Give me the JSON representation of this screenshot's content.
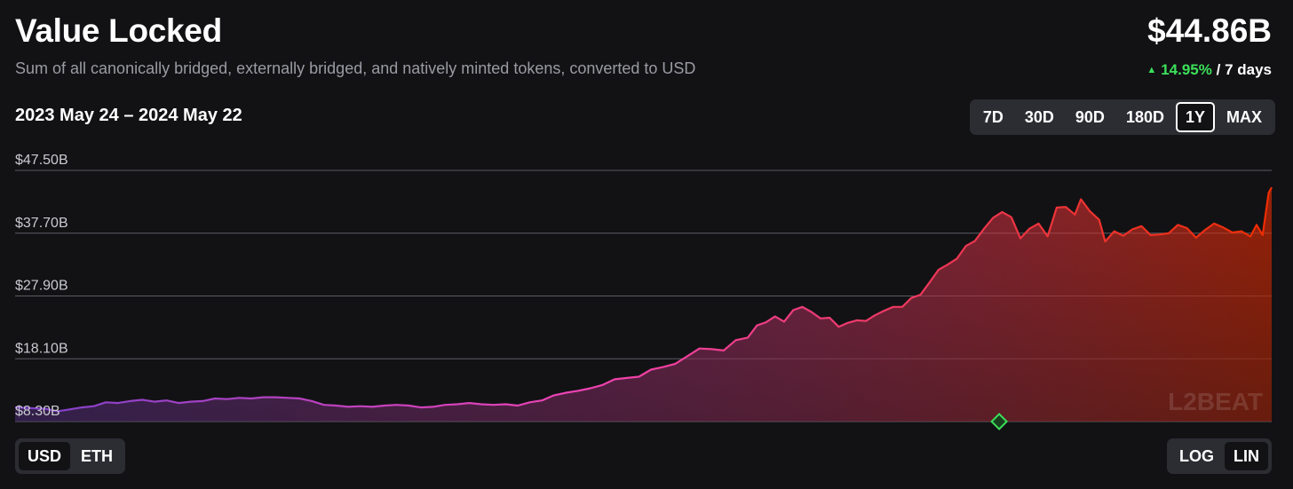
{
  "header": {
    "title": "Value Locked",
    "subtitle": "Sum of all canonically bridged, externally bridged, and natively minted tokens, converted to USD",
    "value": "$44.86B",
    "change": "14.95%",
    "change_period": "/ 7 days",
    "date_range": "2023 May 24 – 2024 May 22"
  },
  "range_buttons": [
    {
      "label": "7D",
      "active": false
    },
    {
      "label": "30D",
      "active": false
    },
    {
      "label": "90D",
      "active": false
    },
    {
      "label": "180D",
      "active": false
    },
    {
      "label": "1Y",
      "active": true
    },
    {
      "label": "MAX",
      "active": false
    }
  ],
  "unit_toggle": [
    {
      "label": "USD",
      "active": true
    },
    {
      "label": "ETH",
      "active": false
    }
  ],
  "scale_toggle": [
    {
      "label": "LOG",
      "active": false
    },
    {
      "label": "LIN",
      "active": true
    }
  ],
  "watermark": "L2BEAT",
  "colors": {
    "background": "#121214",
    "gradient_start": "#7e41cc",
    "gradient_mid": "#ef43b4",
    "gradient_end": "#ee2c01",
    "positive": "#3ce05a",
    "milestone": "#3ce05a"
  },
  "icons": {
    "change_arrow": "up-triangle-icon",
    "milestone": "diamond-milestone-icon"
  },
  "chart_data": {
    "type": "area",
    "x_start": "2023-05-24",
    "x_end": "2024-05-22",
    "ylim": [
      8.3,
      47.5
    ],
    "yticks": [
      {
        "value": 8.3,
        "label": "$8.30B"
      },
      {
        "value": 18.1,
        "label": "$18.10B"
      },
      {
        "value": 27.9,
        "label": "$27.90B"
      },
      {
        "value": 37.7,
        "label": "$37.70B"
      },
      {
        "value": 47.5,
        "label": "$47.50B"
      }
    ],
    "grid": true,
    "scale": "linear",
    "unit": "USD",
    "series": [
      {
        "values": [
          [
            0,
            10.5
          ],
          [
            5,
            10.4
          ],
          [
            10,
            10.3
          ],
          [
            14,
            9.9
          ],
          [
            18,
            10.2
          ],
          [
            22,
            10.5
          ],
          [
            26,
            10.7
          ],
          [
            30,
            11.3
          ],
          [
            34,
            11.2
          ],
          [
            38,
            11.5
          ],
          [
            42,
            11.7
          ],
          [
            46,
            11.4
          ],
          [
            50,
            11.6
          ],
          [
            54,
            11.2
          ],
          [
            58,
            11.4
          ],
          [
            62,
            11.5
          ],
          [
            66,
            11.9
          ],
          [
            70,
            11.8
          ],
          [
            74,
            12.0
          ],
          [
            78,
            11.9
          ],
          [
            82,
            12.1
          ],
          [
            86,
            12.1
          ],
          [
            90,
            12.0
          ],
          [
            94,
            11.9
          ],
          [
            98,
            11.5
          ],
          [
            102,
            10.9
          ],
          [
            106,
            10.8
          ],
          [
            110,
            10.6
          ],
          [
            114,
            10.7
          ],
          [
            118,
            10.6
          ],
          [
            122,
            10.8
          ],
          [
            126,
            10.9
          ],
          [
            130,
            10.8
          ],
          [
            134,
            10.5
          ],
          [
            138,
            10.6
          ],
          [
            142,
            10.9
          ],
          [
            146,
            11.0
          ],
          [
            150,
            11.2
          ],
          [
            154,
            11.0
          ],
          [
            158,
            10.9
          ],
          [
            162,
            11.0
          ],
          [
            166,
            10.8
          ],
          [
            170,
            11.3
          ],
          [
            174,
            11.6
          ],
          [
            178,
            12.4
          ],
          [
            182,
            12.8
          ],
          [
            186,
            13.1
          ],
          [
            190,
            13.5
          ],
          [
            194,
            14.0
          ],
          [
            198,
            14.9
          ],
          [
            202,
            15.1
          ],
          [
            206,
            15.3
          ],
          [
            210,
            16.4
          ],
          [
            214,
            16.8
          ],
          [
            218,
            17.3
          ],
          [
            222,
            18.5
          ],
          [
            226,
            19.7
          ],
          [
            230,
            19.6
          ],
          [
            234,
            19.4
          ],
          [
            238,
            21.0
          ],
          [
            242,
            21.4
          ],
          [
            245,
            23.3
          ],
          [
            248,
            23.8
          ],
          [
            251,
            24.7
          ],
          [
            254,
            23.9
          ],
          [
            257,
            25.7
          ],
          [
            260,
            26.2
          ],
          [
            263,
            25.4
          ],
          [
            266,
            24.4
          ],
          [
            269,
            24.5
          ],
          [
            272,
            23.1
          ],
          [
            275,
            23.7
          ],
          [
            278,
            24.1
          ],
          [
            281,
            24.0
          ],
          [
            284,
            24.9
          ],
          [
            287,
            25.6
          ],
          [
            290,
            26.2
          ],
          [
            293,
            26.2
          ],
          [
            296,
            27.6
          ],
          [
            299,
            28.1
          ],
          [
            302,
            30.0
          ],
          [
            305,
            32.0
          ],
          [
            308,
            32.8
          ],
          [
            311,
            33.7
          ],
          [
            314,
            35.7
          ],
          [
            317,
            36.5
          ],
          [
            320,
            38.4
          ],
          [
            323,
            40.1
          ],
          [
            326,
            41.0
          ],
          [
            329,
            40.2
          ],
          [
            332,
            36.9
          ],
          [
            335,
            38.4
          ],
          [
            338,
            39.2
          ],
          [
            341,
            37.2
          ],
          [
            344,
            41.7
          ],
          [
            347,
            41.8
          ],
          [
            350,
            40.6
          ],
          [
            352,
            43.0
          ],
          [
            355,
            41.1
          ],
          [
            358,
            39.8
          ],
          [
            360,
            36.4
          ],
          [
            363,
            38.0
          ],
          [
            366,
            37.3
          ],
          [
            369,
            38.3
          ],
          [
            372,
            38.8
          ],
          [
            375,
            37.4
          ],
          [
            378,
            37.5
          ],
          [
            381,
            37.7
          ],
          [
            384,
            39.0
          ],
          [
            387,
            38.5
          ],
          [
            390,
            37.0
          ],
          [
            393,
            38.2
          ],
          [
            396,
            39.2
          ],
          [
            399,
            38.6
          ],
          [
            402,
            37.8
          ],
          [
            405,
            38.0
          ],
          [
            408,
            37.2
          ],
          [
            410,
            39.0
          ],
          [
            412,
            37.4
          ],
          [
            414,
            44.0
          ],
          [
            415,
            44.86
          ]
        ]
      }
    ],
    "milestone_day": 325
  }
}
